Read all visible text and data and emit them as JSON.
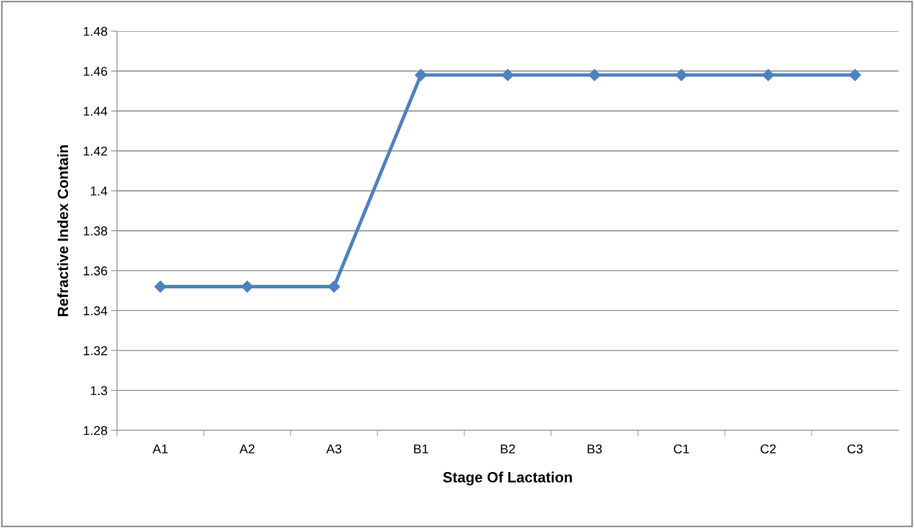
{
  "chart_data": {
    "type": "line",
    "xlabel": "Stage Of Lactation",
    "ylabel": "Refractive Index Contain",
    "categories": [
      "A1",
      "A2",
      "A3",
      "B1",
      "B2",
      "B3",
      "C1",
      "C2",
      "C3"
    ],
    "series": [
      {
        "color": "#4f81bd",
        "values": [
          1.352,
          1.352,
          1.352,
          1.458,
          1.458,
          1.458,
          1.458,
          1.458,
          1.458
        ]
      }
    ],
    "ylim": [
      1.28,
      1.48
    ],
    "yticks": [
      1.28,
      1.3,
      1.32,
      1.34,
      1.36,
      1.38,
      1.4,
      1.42,
      1.44,
      1.46,
      1.48
    ],
    "grid": "y",
    "marker": "diamond",
    "line_style": "solid"
  }
}
